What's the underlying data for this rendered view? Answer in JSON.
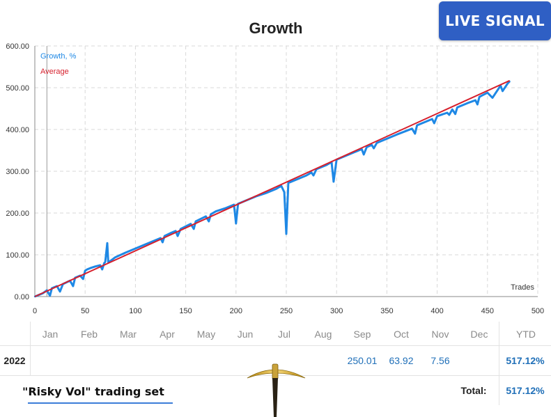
{
  "badge": {
    "label": "LIVE SIGNAL"
  },
  "chart_data": {
    "type": "line",
    "title": "Growth",
    "xlabel": "Trades",
    "ylabel": "",
    "xlim": [
      0,
      500
    ],
    "ylim": [
      0,
      600
    ],
    "x_ticks": [
      "0",
      "50",
      "100",
      "150",
      "200",
      "250",
      "300",
      "350",
      "400",
      "450",
      "500"
    ],
    "y_ticks": [
      "0.00",
      "100.00",
      "200.00",
      "300.00",
      "400.00",
      "500.00",
      "600.00"
    ],
    "grid": true,
    "legend_position": "top-left",
    "series": [
      {
        "name": "Growth, %",
        "color": "#1e88e5",
        "x": [
          0,
          8,
          12,
          15,
          17,
          22,
          25,
          28,
          35,
          38,
          40,
          45,
          48,
          50,
          52,
          55,
          60,
          65,
          67,
          69,
          70,
          72,
          73,
          75,
          80,
          90,
          100,
          110,
          120,
          125,
          127,
          129,
          135,
          140,
          142,
          145,
          150,
          155,
          158,
          160,
          170,
          173,
          175,
          180,
          190,
          198,
          200,
          202,
          210,
          220,
          230,
          240,
          245,
          248,
          250,
          252,
          255,
          260,
          270,
          275,
          277,
          280,
          290,
          295,
          297,
          300,
          310,
          320,
          325,
          327,
          330,
          335,
          337,
          340,
          350,
          360,
          375,
          378,
          380,
          390,
          395,
          397,
          400,
          410,
          412,
          415,
          418,
          420,
          430,
          438,
          440,
          442,
          445,
          450,
          455,
          463,
          465,
          470,
          472
        ],
        "y": [
          0,
          8,
          15,
          2,
          20,
          25,
          12,
          30,
          38,
          25,
          45,
          50,
          42,
          62,
          65,
          68,
          72,
          75,
          65,
          80,
          83,
          128,
          83,
          85,
          94,
          105,
          115,
          125,
          135,
          140,
          130,
          145,
          152,
          157,
          145,
          162,
          168,
          174,
          162,
          180,
          192,
          180,
          197,
          204,
          212,
          220,
          175,
          222,
          230,
          240,
          248,
          258,
          265,
          250,
          150,
          272,
          275,
          280,
          290,
          297,
          290,
          305,
          315,
          322,
          275,
          328,
          338,
          348,
          353,
          340,
          358,
          363,
          355,
          368,
          378,
          388,
          402,
          390,
          410,
          420,
          425,
          415,
          432,
          440,
          435,
          448,
          437,
          453,
          463,
          470,
          460,
          478,
          482,
          488,
          476,
          505,
          492,
          510,
          515
        ]
      },
      {
        "name": "Average",
        "color": "#d61f2c",
        "x": [
          0,
          472
        ],
        "y": [
          0,
          517
        ]
      }
    ]
  },
  "table": {
    "months": [
      "Jan",
      "Feb",
      "Mar",
      "Apr",
      "May",
      "Jun",
      "Jul",
      "Aug",
      "Sep",
      "Oct",
      "Nov",
      "Dec"
    ],
    "ytd_label": "YTD",
    "rows": [
      {
        "year": "2022",
        "values": [
          "",
          "",
          "",
          "",
          "",
          "",
          "",
          "",
          "250.01",
          "63.92",
          "7.56",
          ""
        ],
        "ytd": "517.12%"
      }
    ],
    "total_label": "Total:",
    "total_value": "517.12%"
  },
  "footer": {
    "title": "\"Risky Vol\" trading set"
  }
}
